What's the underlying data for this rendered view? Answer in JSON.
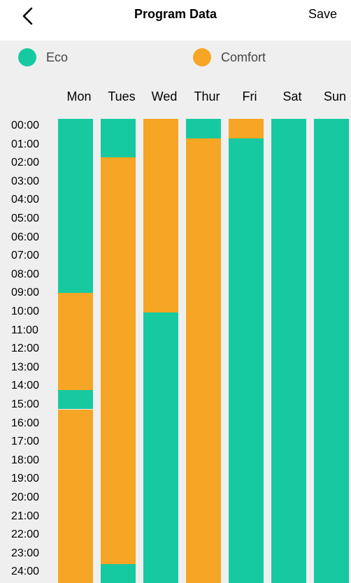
{
  "header": {
    "title": "Program Data",
    "save_label": "Save"
  },
  "legend": {
    "items": [
      {
        "key": "eco",
        "label": "Eco",
        "color": "#17c9a1"
      },
      {
        "key": "comfort",
        "label": "Comfort",
        "color": "#f6a524"
      }
    ]
  },
  "days": [
    "Mon",
    "Tues",
    "Wed",
    "Thur",
    "Fri",
    "Sat",
    "Sun"
  ],
  "hours": [
    "00:00",
    "01:00",
    "02:00",
    "03:00",
    "04:00",
    "05:00",
    "06:00",
    "07:00",
    "08:00",
    "09:00",
    "10:00",
    "11:00",
    "12:00",
    "13:00",
    "14:00",
    "15:00",
    "16:00",
    "17:00",
    "18:00",
    "19:00",
    "20:00",
    "21:00",
    "22:00",
    "23:00",
    "24:00"
  ],
  "schedule": [
    {
      "day": "Mon",
      "periods": [
        {
          "mode": "eco",
          "from": 0,
          "to": 9
        },
        {
          "mode": "comfort",
          "from": 9,
          "to": 14
        },
        {
          "mode": "eco",
          "from": 14,
          "to": 15
        },
        {
          "mode": "comfort",
          "from": 15,
          "to": 24
        }
      ]
    },
    {
      "day": "Tues",
      "periods": [
        {
          "mode": "eco",
          "from": 0,
          "to": 2
        },
        {
          "mode": "comfort",
          "from": 2,
          "to": 23
        },
        {
          "mode": "eco",
          "from": 23,
          "to": 24
        }
      ]
    },
    {
      "day": "Wed",
      "periods": [
        {
          "mode": "comfort",
          "from": 0,
          "to": 10
        },
        {
          "mode": "eco",
          "from": 10,
          "to": 24
        }
      ]
    },
    {
      "day": "Thur",
      "periods": [
        {
          "mode": "eco",
          "from": 0,
          "to": 1
        },
        {
          "mode": "comfort",
          "from": 1,
          "to": 24
        }
      ]
    },
    {
      "day": "Fri",
      "periods": [
        {
          "mode": "comfort",
          "from": 0,
          "to": 1
        },
        {
          "mode": "eco",
          "from": 1,
          "to": 24
        }
      ]
    },
    {
      "day": "Sat",
      "periods": [
        {
          "mode": "eco",
          "from": 0,
          "to": 24
        }
      ]
    },
    {
      "day": "Sun",
      "periods": [
        {
          "mode": "eco",
          "from": 0,
          "to": 24
        }
      ]
    }
  ]
}
